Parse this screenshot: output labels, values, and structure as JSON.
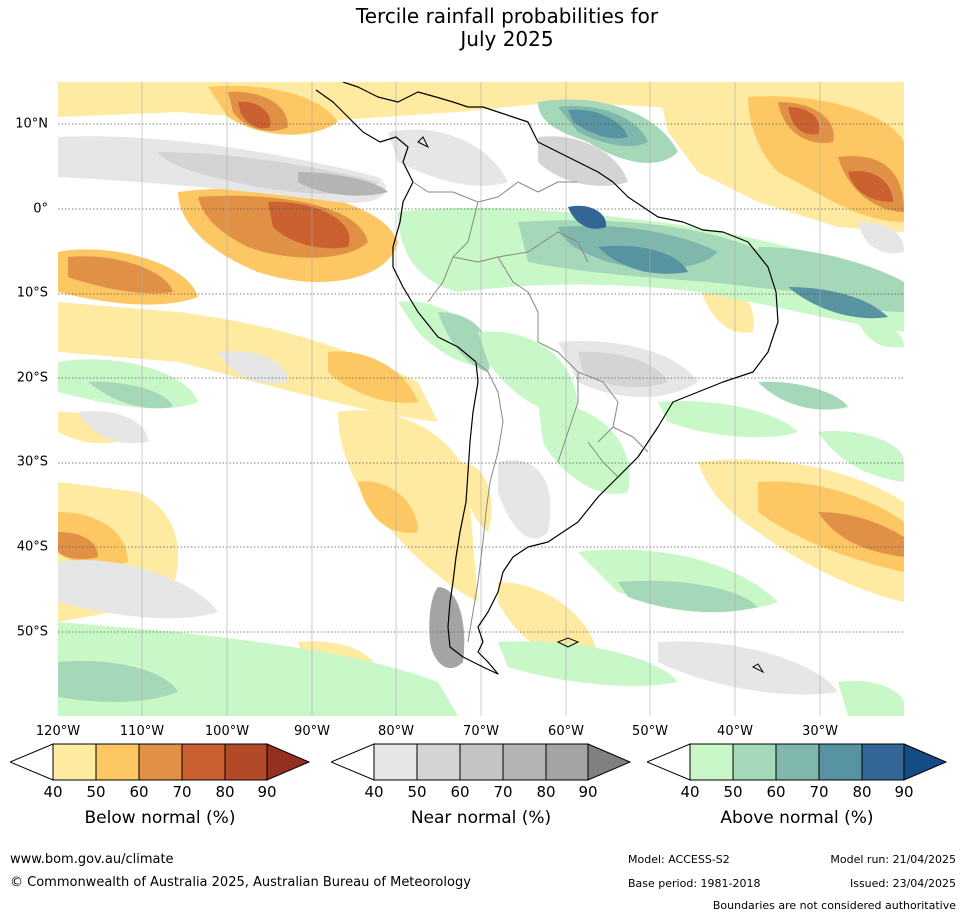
{
  "title": {
    "line1": "Tercile rainfall probabilities for",
    "line2": "July 2025"
  },
  "map": {
    "region": "South America",
    "lat_labels": [
      "10°N",
      "0°",
      "10°S",
      "20°S",
      "30°S",
      "40°S",
      "50°S"
    ],
    "lon_labels": [
      "120°W",
      "110°W",
      "100°W",
      "90°W",
      "80°W",
      "70°W",
      "60°W",
      "50°W",
      "40°W",
      "30°W"
    ],
    "gridlines": "dotted"
  },
  "legends": [
    {
      "title": "Below normal (%)",
      "ticks": [
        "40",
        "50",
        "60",
        "70",
        "80",
        "90"
      ],
      "colors": [
        "#ffffff",
        "#feeaa0",
        "#fdc864",
        "#e09146",
        "#cb6131",
        "#b24a28",
        "#953020"
      ]
    },
    {
      "title": "Near normal (%)",
      "ticks": [
        "40",
        "50",
        "60",
        "70",
        "80",
        "90"
      ],
      "colors": [
        "#ffffff",
        "#e6e6e6",
        "#d4d4d4",
        "#c4c4c4",
        "#b4b4b4",
        "#a4a4a4",
        "#808080"
      ]
    },
    {
      "title": "Above normal (%)",
      "ticks": [
        "40",
        "50",
        "60",
        "70",
        "80",
        "90"
      ],
      "colors": [
        "#ffffff",
        "#c8f7c8",
        "#a5d8b8",
        "#80b7ad",
        "#5893a2",
        "#336696",
        "#154c85"
      ]
    }
  ],
  "footer": {
    "website": "www.bom.gov.au/climate",
    "copyright": "© Commonwealth of Australia 2025, Australian Bureau of Meteorology",
    "model": "Model: ACCESS-S2",
    "base_period": "Base period: 1981-2018",
    "model_run": "Model run: 21/04/2025",
    "issued": "Issued: 23/04/2025",
    "disclaimer": "Boundaries are not considered authoritative"
  }
}
